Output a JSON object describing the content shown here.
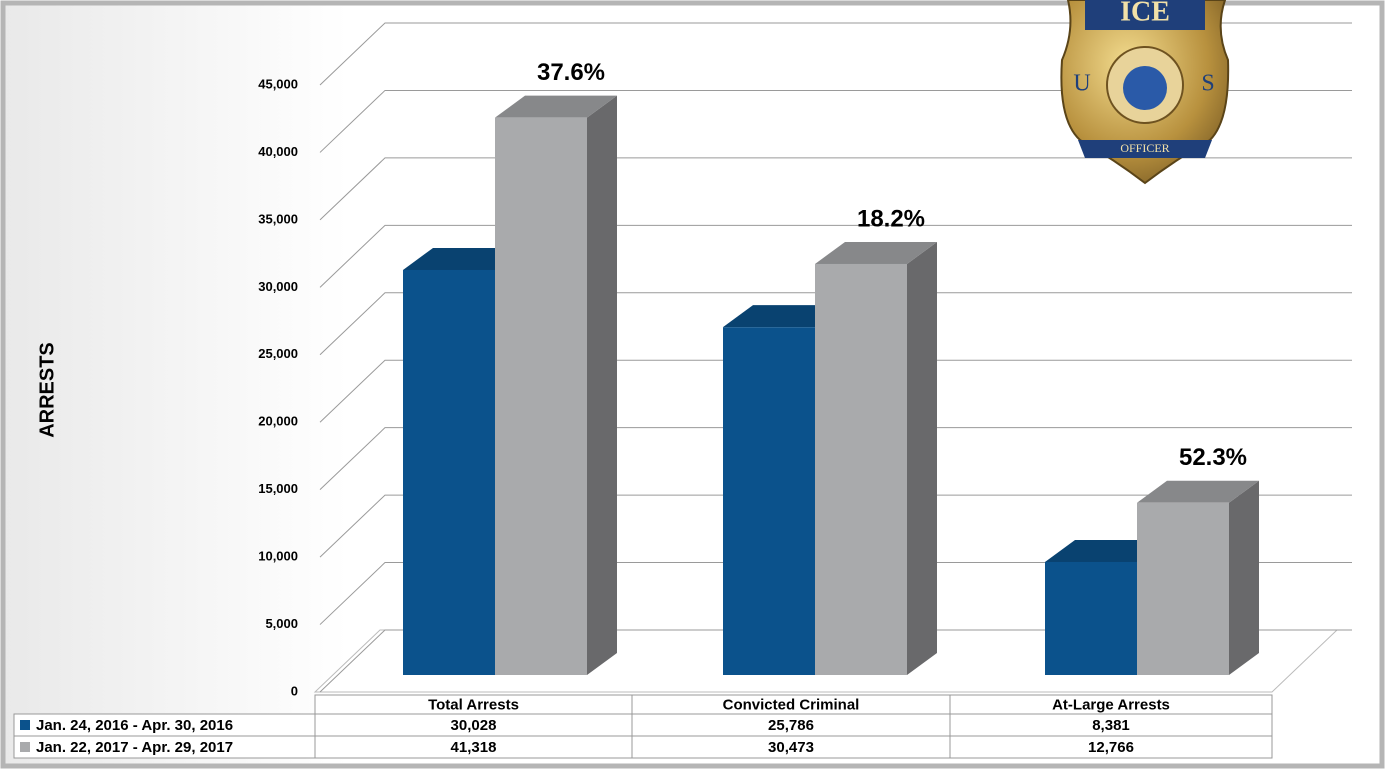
{
  "chart_data": {
    "type": "bar3d",
    "y_label": "ARRESTS",
    "categories": [
      "Total Arrests",
      "Convicted Criminal",
      "At-Large Arrests"
    ],
    "series": [
      {
        "name": "Jan. 24, 2016 - Apr. 30, 2016",
        "color": "#0b528c",
        "values": [
          30028,
          25786,
          8381
        ],
        "value_labels": [
          "30,028",
          "25,786",
          "8,381"
        ]
      },
      {
        "name": "Jan. 22, 2017 - Apr. 29, 2017",
        "color": "#a9aaac",
        "values": [
          41318,
          30473,
          12766
        ],
        "value_labels": [
          "41,318",
          "30,473",
          "12,766"
        ]
      }
    ],
    "annotations": [
      "37.6%",
      "18.2%",
      "52.3%"
    ],
    "ylim": [
      0,
      45000
    ],
    "yticks": [
      0,
      {
        "value": 5000,
        "label": "5,000"
      },
      {
        "value": 10000,
        "label": "10,000"
      },
      {
        "value": 15000,
        "label": "15,000"
      },
      {
        "value": 20000,
        "label": "20,000"
      },
      {
        "value": 25000,
        "label": "25,000"
      },
      {
        "value": 30000,
        "label": "30,000"
      },
      {
        "value": 35000,
        "label": "35,000"
      },
      {
        "value": 40000,
        "label": "40,000"
      },
      {
        "value": 45000,
        "label": "45,000"
      }
    ],
    "grid": true,
    "badge": {
      "top": "ICE",
      "left": "U",
      "right": "S",
      "bottom": "OFFICER"
    }
  }
}
